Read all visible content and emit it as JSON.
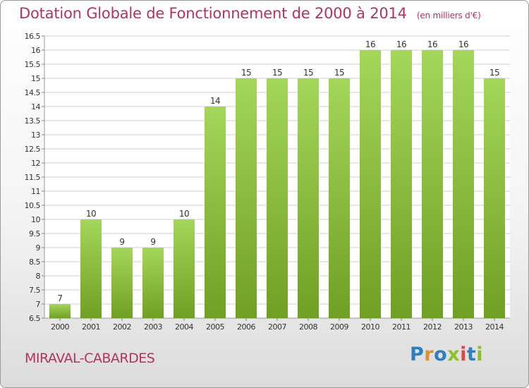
{
  "header": {
    "title": "Dotation Globale de Fonctionnement de 2000 à 2014",
    "subtitle": "(en milliers d'€)"
  },
  "footer": {
    "town": "MIRAVAL-CABARDES",
    "logo": "Proxiti",
    "logo_letters": [
      {
        "char": "P",
        "color": "#2e7fc0"
      },
      {
        "char": "r",
        "color": "#e0902a"
      },
      {
        "char": "o",
        "color": "#2e7fc0"
      },
      {
        "char": "x",
        "color": "#8cbf2a"
      },
      {
        "char": "i",
        "color": "#d84a4a"
      },
      {
        "char": "t",
        "color": "#2e7fc0"
      },
      {
        "char": "i",
        "color": "#8cbf2a"
      }
    ]
  },
  "chart_data": {
    "type": "bar",
    "title": "Dotation Globale de Fonctionnement de 2000 à 2014",
    "subtitle": "(en milliers d'€)",
    "xlabel": "",
    "ylabel": "",
    "categories": [
      "2000",
      "2001",
      "2002",
      "2003",
      "2004",
      "2005",
      "2006",
      "2007",
      "2008",
      "2009",
      "2010",
      "2011",
      "2012",
      "2013",
      "2014"
    ],
    "values": [
      7,
      10,
      9,
      9,
      10,
      14,
      15,
      15,
      15,
      15,
      16,
      16,
      16,
      16,
      15
    ],
    "data_labels": [
      "7",
      "10",
      "9",
      "9",
      "10",
      "14",
      "15",
      "15",
      "15",
      "15",
      "16",
      "16",
      "16",
      "16",
      "15"
    ],
    "ylim": [
      6.5,
      16.5
    ],
    "yticks": [
      "6.5",
      "7",
      "7.5",
      "8",
      "8.5",
      "9",
      "9.5",
      "10",
      "10.5",
      "11",
      "11.5",
      "12",
      "12.5",
      "13",
      "13.5",
      "14",
      "14.5",
      "15",
      "15.5",
      "16",
      "16.5"
    ],
    "grid": true,
    "legend": "none",
    "colors": {
      "bar_light": "#a4d65a",
      "bar_dark": "#6fa023",
      "grid": "#cfcfcf",
      "text": "#333333"
    }
  }
}
